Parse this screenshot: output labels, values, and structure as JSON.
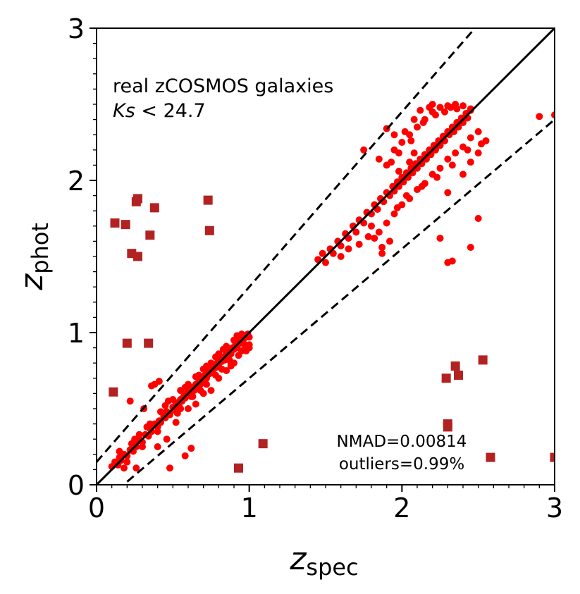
{
  "chart_data": {
    "type": "scatter",
    "title": "",
    "xlabel": "z",
    "xlabel_sub": "spec",
    "ylabel": "z",
    "ylabel_sub": "phot",
    "xlim": [
      0,
      3
    ],
    "ylim": [
      0,
      3
    ],
    "xticks": [
      "0",
      "1",
      "2",
      "3"
    ],
    "yticks": [
      "0",
      "1",
      "2",
      "3"
    ],
    "grid": false,
    "annotation": {
      "line1": "real zCOSMOS galaxies",
      "line2_var": "Ks",
      "line2_rest": " < 24.7"
    },
    "stats": {
      "nmad": "NMAD=0.00814",
      "outliers": "outliers=0.99%"
    },
    "lines": {
      "identity": "z_phot = z_spec",
      "bounds": "z_phot = z_spec ± 0.15(1+z_spec)",
      "bound_factor": 0.15
    },
    "colors": {
      "points": "#ff0000",
      "outliers": "#b22222",
      "lines": "#000000"
    },
    "series": [
      {
        "name": "galaxies",
        "marker": "circle",
        "points": [
          [
            0.1,
            0.12
          ],
          [
            0.12,
            0.15
          ],
          [
            0.14,
            0.13
          ],
          [
            0.15,
            0.18
          ],
          [
            0.16,
            0.16
          ],
          [
            0.18,
            0.2
          ],
          [
            0.2,
            0.19
          ],
          [
            0.22,
            0.23
          ],
          [
            0.24,
            0.22
          ],
          [
            0.25,
            0.27
          ],
          [
            0.26,
            0.25
          ],
          [
            0.28,
            0.3
          ],
          [
            0.3,
            0.28
          ],
          [
            0.32,
            0.33
          ],
          [
            0.34,
            0.32
          ],
          [
            0.35,
            0.37
          ],
          [
            0.36,
            0.35
          ],
          [
            0.38,
            0.4
          ],
          [
            0.4,
            0.38
          ],
          [
            0.41,
            0.42
          ],
          [
            0.42,
            0.41
          ],
          [
            0.44,
            0.45
          ],
          [
            0.45,
            0.44
          ],
          [
            0.46,
            0.48
          ],
          [
            0.48,
            0.46
          ],
          [
            0.5,
            0.51
          ],
          [
            0.51,
            0.49
          ],
          [
            0.52,
            0.54
          ],
          [
            0.54,
            0.52
          ],
          [
            0.55,
            0.56
          ],
          [
            0.56,
            0.55
          ],
          [
            0.57,
            0.58
          ],
          [
            0.58,
            0.57
          ],
          [
            0.59,
            0.6
          ],
          [
            0.6,
            0.59
          ],
          [
            0.61,
            0.62
          ],
          [
            0.62,
            0.61
          ],
          [
            0.63,
            0.64
          ],
          [
            0.64,
            0.62
          ],
          [
            0.65,
            0.66
          ],
          [
            0.66,
            0.65
          ],
          [
            0.67,
            0.68
          ],
          [
            0.68,
            0.66
          ],
          [
            0.69,
            0.7
          ],
          [
            0.7,
            0.69
          ],
          [
            0.71,
            0.72
          ],
          [
            0.72,
            0.7
          ],
          [
            0.73,
            0.74
          ],
          [
            0.74,
            0.73
          ],
          [
            0.75,
            0.76
          ],
          [
            0.76,
            0.74
          ],
          [
            0.77,
            0.78
          ],
          [
            0.78,
            0.77
          ],
          [
            0.79,
            0.8
          ],
          [
            0.8,
            0.78
          ],
          [
            0.81,
            0.82
          ],
          [
            0.82,
            0.81
          ],
          [
            0.83,
            0.84
          ],
          [
            0.84,
            0.82
          ],
          [
            0.85,
            0.86
          ],
          [
            0.86,
            0.85
          ],
          [
            0.87,
            0.88
          ],
          [
            0.88,
            0.86
          ],
          [
            0.89,
            0.9
          ],
          [
            0.9,
            0.89
          ],
          [
            0.91,
            0.92
          ],
          [
            0.92,
            0.9
          ],
          [
            0.93,
            0.94
          ],
          [
            0.94,
            0.93
          ],
          [
            0.95,
            0.96
          ],
          [
            0.96,
            0.95
          ],
          [
            0.97,
            0.98
          ],
          [
            0.98,
            0.97
          ],
          [
            0.99,
            0.99
          ],
          [
            1.0,
            0.97
          ],
          [
            0.6,
            0.66
          ],
          [
            0.62,
            0.58
          ],
          [
            0.65,
            0.71
          ],
          [
            0.68,
            0.62
          ],
          [
            0.7,
            0.76
          ],
          [
            0.72,
            0.66
          ],
          [
            0.75,
            0.8
          ],
          [
            0.78,
            0.72
          ],
          [
            0.8,
            0.86
          ],
          [
            0.82,
            0.76
          ],
          [
            0.85,
            0.91
          ],
          [
            0.88,
            0.8
          ],
          [
            0.9,
            0.95
          ],
          [
            0.93,
            0.85
          ],
          [
            0.95,
            0.99
          ],
          [
            0.98,
            0.88
          ],
          [
            1.0,
            0.9
          ],
          [
            0.5,
            0.56
          ],
          [
            0.53,
            0.47
          ],
          [
            0.45,
            0.52
          ],
          [
            0.4,
            0.35
          ],
          [
            0.35,
            0.4
          ],
          [
            0.3,
            0.25
          ],
          [
            0.25,
            0.3
          ],
          [
            0.2,
            0.15
          ],
          [
            0.55,
            0.5
          ],
          [
            0.58,
            0.64
          ],
          [
            0.63,
            0.58
          ],
          [
            0.67,
            0.72
          ],
          [
            0.72,
            0.78
          ],
          [
            0.78,
            0.84
          ],
          [
            0.83,
            0.89
          ],
          [
            0.87,
            0.82
          ],
          [
            0.92,
            0.98
          ],
          [
            0.97,
            0.92
          ],
          [
            0.15,
            0.22
          ],
          [
            0.18,
            0.11
          ],
          [
            0.26,
            0.11
          ],
          [
            0.22,
            0.55
          ],
          [
            0.31,
            0.5
          ],
          [
            0.36,
            0.65
          ],
          [
            0.38,
            0.66
          ],
          [
            0.41,
            0.68
          ],
          [
            0.48,
            0.11
          ],
          [
            0.58,
            0.19
          ],
          [
            0.4,
            0.25
          ],
          [
            0.46,
            0.3
          ],
          [
            0.52,
            0.41
          ],
          [
            0.6,
            0.5
          ],
          [
            0.65,
            0.53
          ],
          [
            0.7,
            0.6
          ],
          [
            0.75,
            0.62
          ],
          [
            0.8,
            0.7
          ],
          [
            0.85,
            0.75
          ],
          [
            0.9,
            0.8
          ],
          [
            1.0,
            0.92
          ],
          [
            0.95,
            0.88
          ],
          [
            0.88,
            0.78
          ],
          [
            0.62,
            0.24
          ],
          [
            0.55,
            0.62
          ],
          [
            0.47,
            0.55
          ],
          [
            0.42,
            0.48
          ],
          [
            0.33,
            0.38
          ],
          [
            0.28,
            0.33
          ],
          [
            0.23,
            0.27
          ],
          [
            1.45,
            1.48
          ],
          [
            1.48,
            1.52
          ],
          [
            1.5,
            1.46
          ],
          [
            1.53,
            1.55
          ],
          [
            1.55,
            1.52
          ],
          [
            1.58,
            1.6
          ],
          [
            1.6,
            1.57
          ],
          [
            1.63,
            1.65
          ],
          [
            1.65,
            1.62
          ],
          [
            1.68,
            1.7
          ],
          [
            1.7,
            1.66
          ],
          [
            1.72,
            1.74
          ],
          [
            1.75,
            1.72
          ],
          [
            1.77,
            1.79
          ],
          [
            1.8,
            1.78
          ],
          [
            1.82,
            1.84
          ],
          [
            1.84,
            1.81
          ],
          [
            1.86,
            1.88
          ],
          [
            1.88,
            1.86
          ],
          [
            1.9,
            1.92
          ],
          [
            1.92,
            1.9
          ],
          [
            1.94,
            1.96
          ],
          [
            1.95,
            1.93
          ],
          [
            1.97,
            1.99
          ],
          [
            1.98,
            1.96
          ],
          [
            2.0,
            2.02
          ],
          [
            2.01,
            1.99
          ],
          [
            2.03,
            2.05
          ],
          [
            2.04,
            2.02
          ],
          [
            2.06,
            2.08
          ],
          [
            2.07,
            2.05
          ],
          [
            2.09,
            2.11
          ],
          [
            2.1,
            2.08
          ],
          [
            2.12,
            2.14
          ],
          [
            2.13,
            2.11
          ],
          [
            2.15,
            2.17
          ],
          [
            2.16,
            2.14
          ],
          [
            2.18,
            2.2
          ],
          [
            2.19,
            2.17
          ],
          [
            2.21,
            2.23
          ],
          [
            2.22,
            2.2
          ],
          [
            2.24,
            2.26
          ],
          [
            2.25,
            2.23
          ],
          [
            2.27,
            2.29
          ],
          [
            2.28,
            2.26
          ],
          [
            2.3,
            2.32
          ],
          [
            2.31,
            2.3
          ],
          [
            2.33,
            2.35
          ],
          [
            2.34,
            2.32
          ],
          [
            2.36,
            2.38
          ],
          [
            2.37,
            2.35
          ],
          [
            2.39,
            2.41
          ],
          [
            2.4,
            2.38
          ],
          [
            2.42,
            2.44
          ],
          [
            2.43,
            2.41
          ],
          [
            2.45,
            2.46
          ],
          [
            1.9,
            2.1
          ],
          [
            1.95,
            2.2
          ],
          [
            2.0,
            2.25
          ],
          [
            2.05,
            2.3
          ],
          [
            2.1,
            2.35
          ],
          [
            2.15,
            2.4
          ],
          [
            2.2,
            2.45
          ],
          [
            2.25,
            2.48
          ],
          [
            2.3,
            2.49
          ],
          [
            2.35,
            2.5
          ],
          [
            2.4,
            2.49
          ],
          [
            2.45,
            2.47
          ],
          [
            1.95,
            2.3
          ],
          [
            1.9,
            2.34
          ],
          [
            2.02,
            2.32
          ],
          [
            2.08,
            2.4
          ],
          [
            2.12,
            2.46
          ],
          [
            2.18,
            2.48
          ],
          [
            2.22,
            2.43
          ],
          [
            2.28,
            2.45
          ],
          [
            1.75,
            2.2
          ],
          [
            1.85,
            2.14
          ],
          [
            1.98,
            2.18
          ],
          [
            2.06,
            2.26
          ],
          [
            1.8,
            1.7
          ],
          [
            1.85,
            1.66
          ],
          [
            1.9,
            1.72
          ],
          [
            1.95,
            1.78
          ],
          [
            2.0,
            1.84
          ],
          [
            2.05,
            1.88
          ],
          [
            2.1,
            1.94
          ],
          [
            2.15,
            1.98
          ],
          [
            2.2,
            2.04
          ],
          [
            2.25,
            2.08
          ],
          [
            2.3,
            2.14
          ],
          [
            2.35,
            2.18
          ],
          [
            2.4,
            2.22
          ],
          [
            2.45,
            2.28
          ],
          [
            2.5,
            2.32
          ],
          [
            1.82,
            1.62
          ],
          [
            1.87,
            1.56
          ],
          [
            1.92,
            1.6
          ],
          [
            1.97,
            1.82
          ],
          [
            2.03,
            1.9
          ],
          [
            2.13,
            1.96
          ],
          [
            2.23,
            2.02
          ],
          [
            2.33,
            2.1
          ],
          [
            2.43,
            2.2
          ],
          [
            2.55,
            2.26
          ],
          [
            1.6,
            1.5
          ],
          [
            1.65,
            1.55
          ],
          [
            1.72,
            1.58
          ],
          [
            1.78,
            1.63
          ],
          [
            1.87,
            1.52
          ],
          [
            2.25,
            1.62
          ],
          [
            2.3,
            1.46
          ],
          [
            2.33,
            1.47
          ],
          [
            2.45,
            1.56
          ],
          [
            2.5,
            1.75
          ],
          [
            2.3,
            1.92
          ],
          [
            2.4,
            2.04
          ],
          [
            2.45,
            2.12
          ],
          [
            2.5,
            2.18
          ],
          [
            2.52,
            2.24
          ],
          [
            2.9,
            2.42
          ],
          [
            3.0,
            2.43
          ],
          [
            2.32,
            2.48
          ],
          [
            2.36,
            2.47
          ],
          [
            2.2,
            2.5
          ],
          [
            2.14,
            2.38
          ],
          [
            2.08,
            2.18
          ],
          [
            1.98,
            2.06
          ],
          [
            1.93,
            2.12
          ],
          [
            2.05,
            2.12
          ]
        ]
      },
      {
        "name": "outliers",
        "marker": "square",
        "points": [
          [
            0.12,
            1.72
          ],
          [
            0.19,
            1.71
          ],
          [
            0.23,
            1.52
          ],
          [
            0.27,
            1.5
          ],
          [
            0.26,
            1.86
          ],
          [
            0.27,
            1.88
          ],
          [
            0.38,
            1.82
          ],
          [
            0.35,
            1.64
          ],
          [
            0.73,
            1.87
          ],
          [
            0.74,
            1.67
          ],
          [
            0.2,
            0.93
          ],
          [
            0.34,
            0.93
          ],
          [
            0.11,
            0.61
          ],
          [
            0.93,
            0.11
          ],
          [
            1.09,
            0.27
          ],
          [
            2.29,
            0.7
          ],
          [
            2.35,
            0.78
          ],
          [
            2.37,
            0.72
          ],
          [
            2.53,
            0.82
          ],
          [
            2.3,
            0.4
          ],
          [
            2.3,
            0.38
          ],
          [
            2.58,
            0.18
          ],
          [
            3.0,
            0.18
          ]
        ]
      }
    ]
  }
}
